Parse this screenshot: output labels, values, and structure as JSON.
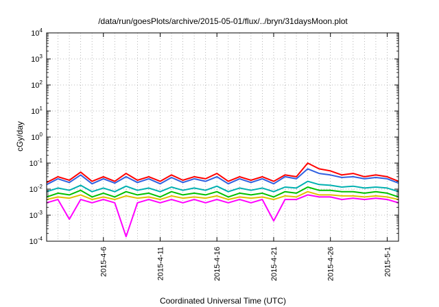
{
  "chart_data": {
    "type": "line",
    "title": "/data/run/goesPlots/archive/2015-05-01/flux/../bryn/31daysMoon.plot",
    "xlabel": "Coordinated Universal Time (UTC)",
    "ylabel": "cGy/day",
    "yscale": "log",
    "ylim": [
      0.0001,
      10000
    ],
    "xlim": [
      "2015-04-01",
      "2015-05-02"
    ],
    "grid": true,
    "y_ticks": [
      {
        "base": "10",
        "exp": "-4",
        "value": 0.0001
      },
      {
        "base": "10",
        "exp": "-3",
        "value": 0.001
      },
      {
        "base": "10",
        "exp": "-2",
        "value": 0.01
      },
      {
        "base": "10",
        "exp": "-1",
        "value": 0.1
      },
      {
        "base": "10",
        "exp": "0",
        "value": 1
      },
      {
        "base": "10",
        "exp": "1",
        "value": 10
      },
      {
        "base": "10",
        "exp": "2",
        "value": 100
      },
      {
        "base": "10",
        "exp": "3",
        "value": 1000
      },
      {
        "base": "10",
        "exp": "4",
        "value": 10000
      }
    ],
    "x_ticks": [
      {
        "label": "2015-4-6",
        "date": "2015-04-06"
      },
      {
        "label": "2015-4-11",
        "date": "2015-04-11"
      },
      {
        "label": "2015-4-16",
        "date": "2015-04-16"
      },
      {
        "label": "2015-4-21",
        "date": "2015-04-21"
      },
      {
        "label": "2015-4-26",
        "date": "2015-04-26"
      },
      {
        "label": "2015-5-1",
        "date": "2015-05-01"
      }
    ],
    "series": [
      {
        "color": "#ff0000",
        "x": [
          "2015-04-01",
          "2015-04-02",
          "2015-04-03",
          "2015-04-04",
          "2015-04-05",
          "2015-04-06",
          "2015-04-07",
          "2015-04-08",
          "2015-04-09",
          "2015-04-10",
          "2015-04-11",
          "2015-04-12",
          "2015-04-13",
          "2015-04-14",
          "2015-04-15",
          "2015-04-16",
          "2015-04-17",
          "2015-04-18",
          "2015-04-19",
          "2015-04-20",
          "2015-04-21",
          "2015-04-22",
          "2015-04-23",
          "2015-04-24",
          "2015-04-25",
          "2015-04-26",
          "2015-04-27",
          "2015-04-28",
          "2015-04-29",
          "2015-04-30",
          "2015-05-01",
          "2015-05-02"
        ],
        "y": [
          0.018,
          0.03,
          0.022,
          0.045,
          0.02,
          0.03,
          0.02,
          0.04,
          0.022,
          0.03,
          0.02,
          0.035,
          0.022,
          0.03,
          0.025,
          0.04,
          0.02,
          0.03,
          0.022,
          0.03,
          0.02,
          0.035,
          0.03,
          0.1,
          0.06,
          0.05,
          0.035,
          0.04,
          0.03,
          0.035,
          0.03,
          0.02
        ]
      },
      {
        "color": "#3060e0",
        "x": [
          "2015-04-01",
          "2015-04-02",
          "2015-04-03",
          "2015-04-04",
          "2015-04-05",
          "2015-04-06",
          "2015-04-07",
          "2015-04-08",
          "2015-04-09",
          "2015-04-10",
          "2015-04-11",
          "2015-04-12",
          "2015-04-13",
          "2015-04-14",
          "2015-04-15",
          "2015-04-16",
          "2015-04-17",
          "2015-04-18",
          "2015-04-19",
          "2015-04-20",
          "2015-04-21",
          "2015-04-22",
          "2015-04-23",
          "2015-04-24",
          "2015-04-25",
          "2015-04-26",
          "2015-04-27",
          "2015-04-28",
          "2015-04-29",
          "2015-04-30",
          "2015-05-01",
          "2015-05-02"
        ],
        "y": [
          0.015,
          0.025,
          0.018,
          0.035,
          0.016,
          0.025,
          0.017,
          0.03,
          0.018,
          0.025,
          0.016,
          0.028,
          0.018,
          0.025,
          0.02,
          0.03,
          0.016,
          0.025,
          0.018,
          0.025,
          0.016,
          0.03,
          0.025,
          0.06,
          0.04,
          0.035,
          0.028,
          0.03,
          0.025,
          0.028,
          0.025,
          0.017
        ]
      },
      {
        "color": "#00b0b0",
        "x": [
          "2015-04-01",
          "2015-04-02",
          "2015-04-03",
          "2015-04-04",
          "2015-04-05",
          "2015-04-06",
          "2015-04-07",
          "2015-04-08",
          "2015-04-09",
          "2015-04-10",
          "2015-04-11",
          "2015-04-12",
          "2015-04-13",
          "2015-04-14",
          "2015-04-15",
          "2015-04-16",
          "2015-04-17",
          "2015-04-18",
          "2015-04-19",
          "2015-04-20",
          "2015-04-21",
          "2015-04-22",
          "2015-04-23",
          "2015-04-24",
          "2015-04-25",
          "2015-04-26",
          "2015-04-27",
          "2015-04-28",
          "2015-04-29",
          "2015-04-30",
          "2015-05-01",
          "2015-05-02"
        ],
        "y": [
          0.008,
          0.011,
          0.009,
          0.014,
          0.008,
          0.011,
          0.008,
          0.013,
          0.009,
          0.011,
          0.008,
          0.012,
          0.009,
          0.011,
          0.009,
          0.013,
          0.008,
          0.011,
          0.009,
          0.011,
          0.008,
          0.012,
          0.011,
          0.02,
          0.015,
          0.014,
          0.012,
          0.013,
          0.011,
          0.012,
          0.011,
          0.008
        ]
      },
      {
        "color": "#00c000",
        "x": [
          "2015-04-01",
          "2015-04-02",
          "2015-04-03",
          "2015-04-04",
          "2015-04-05",
          "2015-04-06",
          "2015-04-07",
          "2015-04-08",
          "2015-04-09",
          "2015-04-10",
          "2015-04-11",
          "2015-04-12",
          "2015-04-13",
          "2015-04-14",
          "2015-04-15",
          "2015-04-16",
          "2015-04-17",
          "2015-04-18",
          "2015-04-19",
          "2015-04-20",
          "2015-04-21",
          "2015-04-22",
          "2015-04-23",
          "2015-04-24",
          "2015-04-25",
          "2015-04-26",
          "2015-04-27",
          "2015-04-28",
          "2015-04-29",
          "2015-04-30",
          "2015-05-01",
          "2015-05-02"
        ],
        "y": [
          0.005,
          0.007,
          0.006,
          0.009,
          0.005,
          0.007,
          0.005,
          0.008,
          0.006,
          0.007,
          0.005,
          0.008,
          0.006,
          0.007,
          0.006,
          0.008,
          0.005,
          0.007,
          0.006,
          0.007,
          0.005,
          0.008,
          0.007,
          0.012,
          0.009,
          0.009,
          0.008,
          0.008,
          0.007,
          0.008,
          0.007,
          0.005
        ]
      },
      {
        "color": "#e0c000",
        "x": [
          "2015-04-01",
          "2015-04-02",
          "2015-04-03",
          "2015-04-04",
          "2015-04-05",
          "2015-04-06",
          "2015-04-07",
          "2015-04-08",
          "2015-04-09",
          "2015-04-10",
          "2015-04-11",
          "2015-04-12",
          "2015-04-13",
          "2015-04-14",
          "2015-04-15",
          "2015-04-16",
          "2015-04-17",
          "2015-04-18",
          "2015-04-19",
          "2015-04-20",
          "2015-04-21",
          "2015-04-22",
          "2015-04-23",
          "2015-04-24",
          "2015-04-25",
          "2015-04-26",
          "2015-04-27",
          "2015-04-28",
          "2015-04-29",
          "2015-04-30",
          "2015-05-01",
          "2015-05-02"
        ],
        "y": [
          0.004,
          0.005,
          0.0045,
          0.006,
          0.004,
          0.005,
          0.004,
          0.0055,
          0.0045,
          0.005,
          0.004,
          0.0055,
          0.0045,
          0.005,
          0.0045,
          0.0055,
          0.004,
          0.005,
          0.0045,
          0.005,
          0.004,
          0.0055,
          0.005,
          0.008,
          0.006,
          0.006,
          0.0055,
          0.0055,
          0.005,
          0.0055,
          0.005,
          0.004
        ]
      },
      {
        "color": "#ff00ff",
        "x": [
          "2015-04-01",
          "2015-04-02",
          "2015-04-03",
          "2015-04-04",
          "2015-04-05",
          "2015-04-06",
          "2015-04-07",
          "2015-04-08",
          "2015-04-09",
          "2015-04-10",
          "2015-04-11",
          "2015-04-12",
          "2015-04-13",
          "2015-04-14",
          "2015-04-15",
          "2015-04-16",
          "2015-04-17",
          "2015-04-18",
          "2015-04-19",
          "2015-04-20",
          "2015-04-21",
          "2015-04-22",
          "2015-04-23",
          "2015-04-24",
          "2015-04-25",
          "2015-04-26",
          "2015-04-27",
          "2015-04-28",
          "2015-04-29",
          "2015-04-30",
          "2015-05-01",
          "2015-05-02"
        ],
        "y": [
          0.003,
          0.004,
          0.0007,
          0.004,
          0.003,
          0.004,
          0.003,
          0.00015,
          0.003,
          0.004,
          0.003,
          0.004,
          0.003,
          0.004,
          0.003,
          0.004,
          0.003,
          0.004,
          0.003,
          0.004,
          0.0006,
          0.004,
          0.004,
          0.006,
          0.005,
          0.005,
          0.004,
          0.0045,
          0.004,
          0.0045,
          0.004,
          0.003
        ]
      }
    ]
  }
}
